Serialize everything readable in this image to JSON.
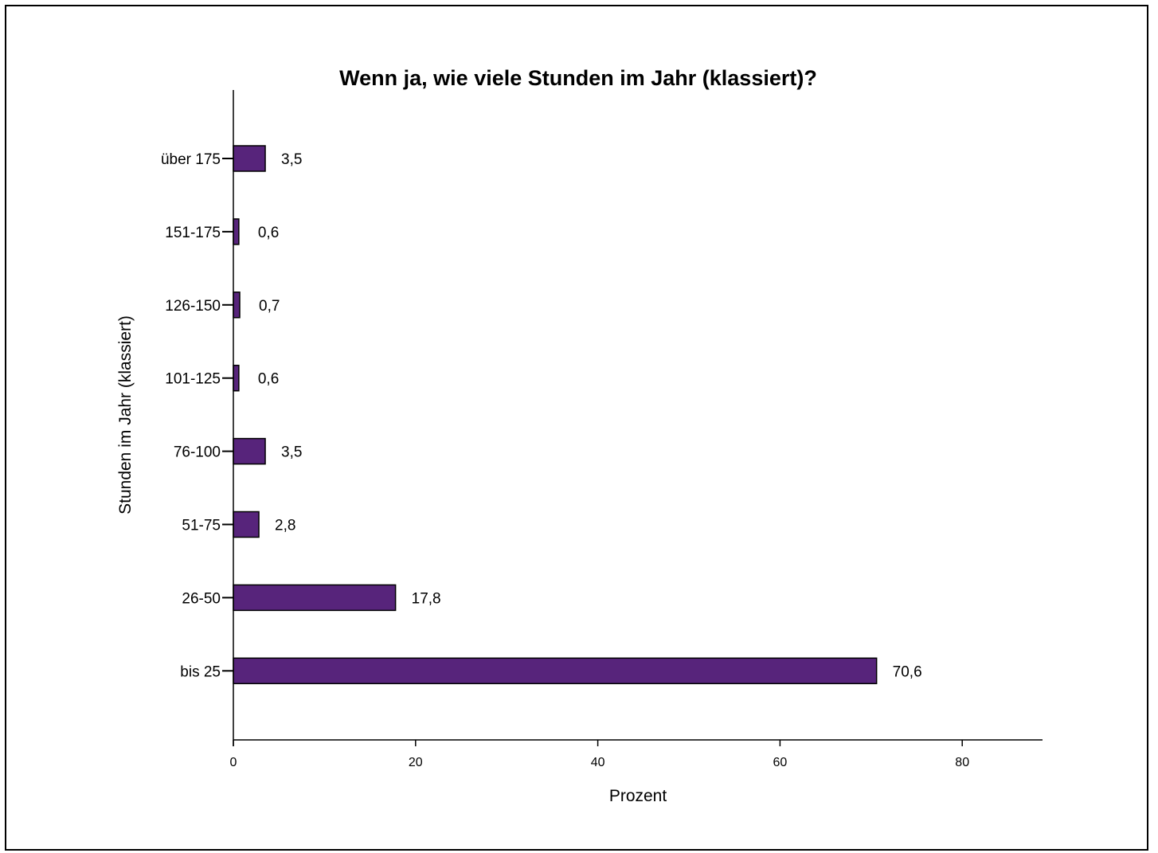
{
  "chart_data": {
    "type": "bar",
    "orientation": "horizontal",
    "title": "Wenn ja, wie viele Stunden im Jahr (klassiert)?",
    "xlabel": "Prozent",
    "ylabel": "Stunden im Jahr (klassiert)",
    "categories": [
      "über 175",
      "151-175",
      "126-150",
      "101-125",
      "76-100",
      "51-75",
      "26-50",
      "bis 25"
    ],
    "values": [
      3.5,
      0.6,
      0.7,
      0.6,
      3.5,
      2.8,
      17.8,
      70.6
    ],
    "value_labels": [
      "3,5",
      "0,6",
      "0,7",
      "0,6",
      "3,5",
      "2,8",
      "17,8",
      "70,6"
    ],
    "xticks": [
      0,
      20,
      40,
      60,
      80
    ],
    "xlim": [
      0,
      88.8
    ],
    "grid": false,
    "bar_color": "#57247b"
  }
}
